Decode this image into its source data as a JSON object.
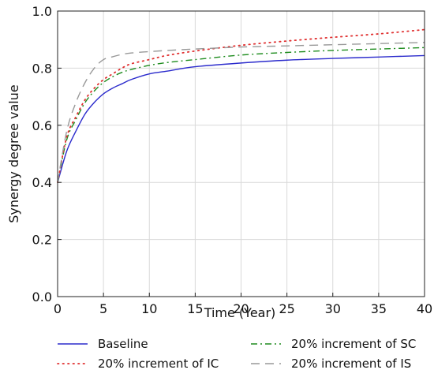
{
  "chart_data": {
    "type": "line",
    "xlabel": "Time (Year)",
    "ylabel": "Synergy degree value",
    "xlim": [
      0,
      40
    ],
    "ylim": [
      0.0,
      1.0
    ],
    "xticks": [
      "0",
      "5",
      "10",
      "15",
      "20",
      "25",
      "30",
      "35",
      "40"
    ],
    "yticks": [
      "0.0",
      "0.2",
      "0.4",
      "0.6",
      "0.8",
      "1.0"
    ],
    "grid": true,
    "legend_position": "bottom",
    "series": [
      {
        "name": "Baseline",
        "color": "#2b2bcc",
        "style": "solid",
        "x": [
          0,
          1,
          2,
          3,
          4,
          5,
          6,
          7,
          8,
          10,
          12,
          15,
          20,
          25,
          30,
          35,
          40
        ],
        "y": [
          0.4,
          0.51,
          0.58,
          0.64,
          0.68,
          0.71,
          0.73,
          0.745,
          0.76,
          0.78,
          0.79,
          0.805,
          0.818,
          0.828,
          0.834,
          0.839,
          0.844
        ]
      },
      {
        "name": "20% increment of SC",
        "color": "#1e8c1e",
        "style": "dashdot",
        "x": [
          0,
          1,
          2,
          3,
          4,
          5,
          6,
          7,
          8,
          10,
          12,
          15,
          20,
          25,
          30,
          35,
          40
        ],
        "y": [
          0.4,
          0.55,
          0.62,
          0.68,
          0.72,
          0.75,
          0.77,
          0.785,
          0.795,
          0.81,
          0.82,
          0.83,
          0.846,
          0.855,
          0.862,
          0.867,
          0.872
        ]
      },
      {
        "name": "20% increment of IC",
        "color": "#e03030",
        "style": "dotted",
        "x": [
          0,
          1,
          2,
          3,
          4,
          5,
          6,
          7,
          8,
          10,
          12,
          15,
          20,
          25,
          30,
          35,
          40
        ],
        "y": [
          0.4,
          0.56,
          0.63,
          0.69,
          0.73,
          0.76,
          0.78,
          0.8,
          0.815,
          0.83,
          0.845,
          0.86,
          0.88,
          0.895,
          0.908,
          0.92,
          0.935
        ]
      },
      {
        "name": "20% increment of IS",
        "color": "#999999",
        "style": "dashed",
        "x": [
          0,
          1,
          2,
          3,
          4,
          5,
          6,
          7,
          8,
          10,
          12,
          15,
          20,
          25,
          30,
          35,
          40
        ],
        "y": [
          0.4,
          0.58,
          0.68,
          0.75,
          0.8,
          0.83,
          0.84,
          0.848,
          0.853,
          0.858,
          0.862,
          0.867,
          0.874,
          0.878,
          0.882,
          0.886,
          0.89
        ]
      }
    ]
  }
}
